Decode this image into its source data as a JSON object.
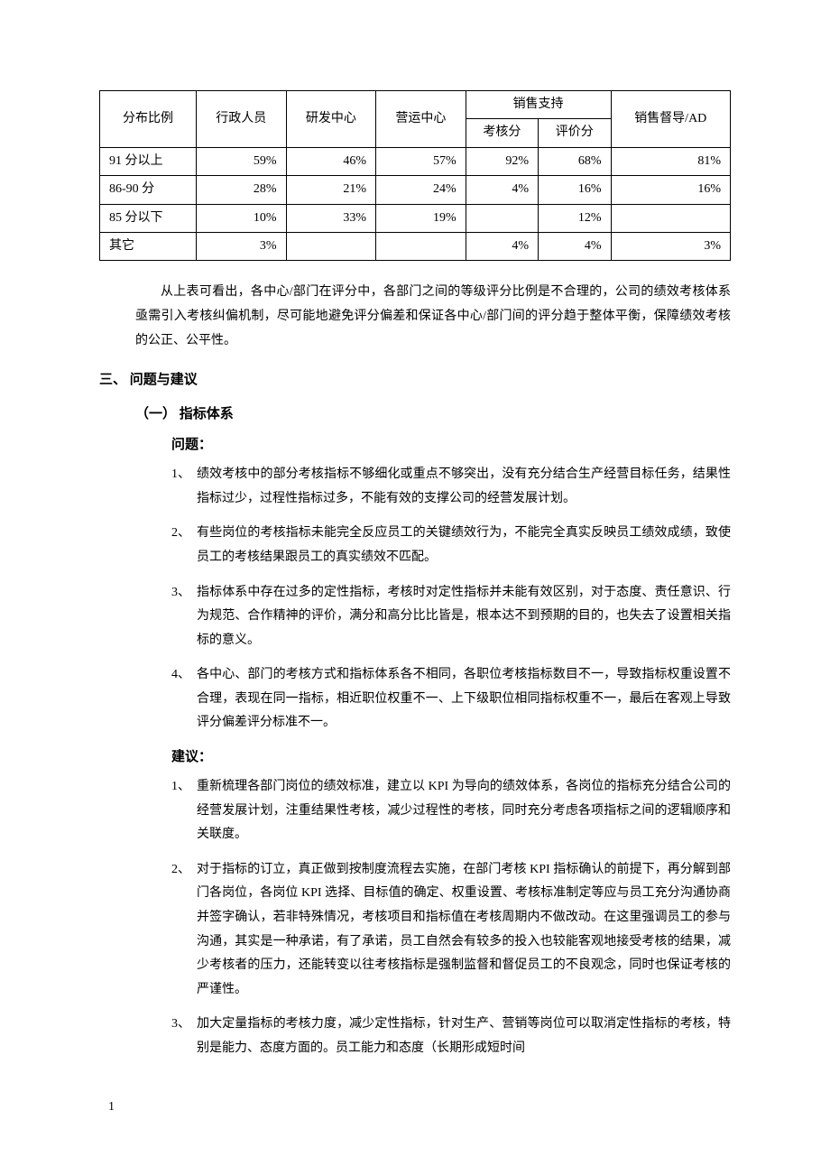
{
  "table": {
    "type": "table",
    "border_color": "#000000",
    "background_color": "#ffffff",
    "header": {
      "col1": "分布比例",
      "col2": "行政人员",
      "col3": "研发中心",
      "col4": "营运中心",
      "col5": "销售支持",
      "col5a": "考核分",
      "col5b": "评价分",
      "col6": "销售督导/AD"
    },
    "rows": [
      {
        "label": "91 分以上",
        "c2": "59%",
        "c3": "46%",
        "c4": "57%",
        "c5a": "92%",
        "c5b": "68%",
        "c6": "81%"
      },
      {
        "label": "86-90 分",
        "c2": "28%",
        "c3": "21%",
        "c4": "24%",
        "c5a": "4%",
        "c5b": "16%",
        "c6": "16%"
      },
      {
        "label": "85 分以下",
        "c2": "10%",
        "c3": "33%",
        "c4": "19%",
        "c5a": "",
        "c5b": "12%",
        "c6": ""
      },
      {
        "label": "其它",
        "c2": "3%",
        "c3": "",
        "c4": "",
        "c5a": "4%",
        "c5b": "4%",
        "c6": "3%"
      }
    ]
  },
  "para_after_table": "从上表可看出，各中心/部门在评分中，各部门之间的等级评分比例是不合理的，公司的绩效考核体系亟需引入考核纠偏机制，尽可能地避免评分偏差和保证各中心/部门间的评分趋于整体平衡，保障绩效考核的公正、公平性。",
  "section3_title": "三、 问题与建议",
  "sub1_title": "（一） 指标体系",
  "problems_label": "问题：",
  "problems": [
    "绩效考核中的部分考核指标不够细化或重点不够突出，没有充分结合生产经营目标任务，结果性指标过少，过程性指标过多，不能有效的支撑公司的经营发展计划。",
    "有些岗位的考核指标未能完全反应员工的关键绩效行为，不能完全真实反映员工绩效成绩，致使员工的考核结果跟员工的真实绩效不匹配。",
    "指标体系中存在过多的定性指标，考核时对定性指标并未能有效区别，对于态度、责任意识、行为规范、合作精神的评价，满分和高分比比皆是，根本达不到预期的目的，也失去了设置相关指标的意义。",
    "各中心、部门的考核方式和指标体系各不相同，各职位考核指标数目不一，导致指标权重设置不合理，表现在同一指标，相近职位权重不一、上下级职位相同指标权重不一，最后在客观上导致评分偏差评分标准不一。"
  ],
  "suggestions_label": "建议：",
  "suggestions": [
    "重新梳理各部门岗位的绩效标准，建立以 KPI 为导向的绩效体系，各岗位的指标充分结合公司的经营发展计划，注重结果性考核，减少过程性的考核，同时充分考虑各项指标之间的逻辑顺序和关联度。",
    "对于指标的订立，真正做到按制度流程去实施，在部门考核 KPI 指标确认的前提下，再分解到部门各岗位，各岗位 KPI 选择、目标值的确定、权重设置、考核标准制定等应与员工充分沟通协商并签字确认，若非特殊情况，考核项目和指标值在考核周期内不做改动。在这里强调员工的参与沟通，其实是一种承诺，有了承诺，员工自然会有较多的投入也较能客观地接受考核的结果，减少考核者的压力，还能转变以往考核指标是强制监督和督促员工的不良观念，同时也保证考核的严谨性。",
    "加大定量指标的考核力度，减少定性指标，针对生产、营销等岗位可以取消定性指标的考核，特别是能力、态度方面的。员工能力和态度（长期形成短时间"
  ],
  "markers": {
    "m1": "1、",
    "m2": "2、",
    "m3": "3、",
    "m4": "4、"
  },
  "page_number": "1"
}
